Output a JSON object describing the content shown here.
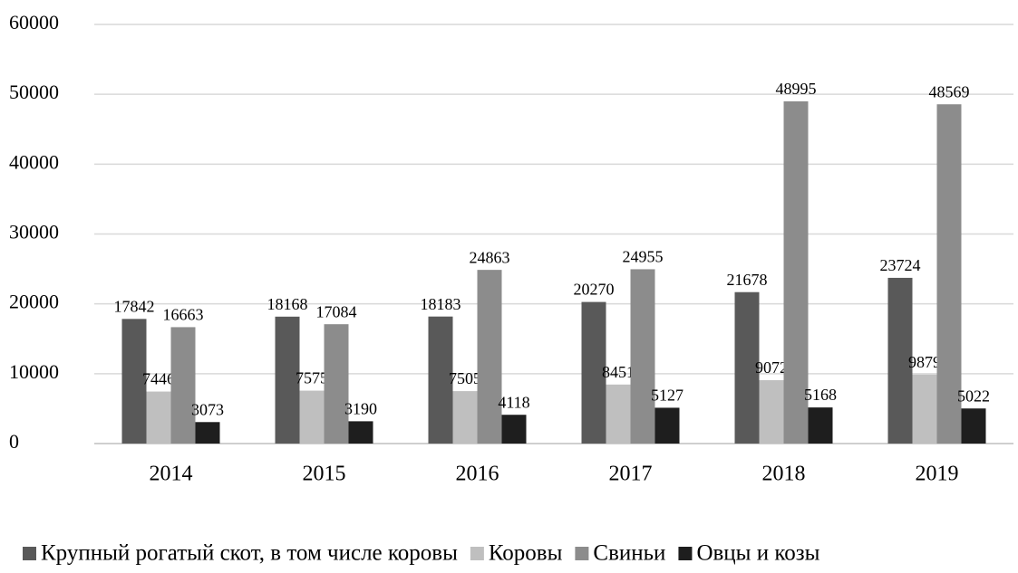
{
  "chart_data": {
    "type": "bar",
    "categories": [
      "2014",
      "2015",
      "2016",
      "2017",
      "2018",
      "2019"
    ],
    "series": [
      {
        "name": "Крупный рогатый скот, в том числе коровы",
        "color": "#595959",
        "values": [
          17842,
          18168,
          18183,
          20270,
          21678,
          23724
        ]
      },
      {
        "name": "Коровы",
        "color": "#bfbfbf",
        "values": [
          7446,
          7575,
          7505,
          8451,
          9072,
          9879
        ]
      },
      {
        "name": "Свиньи",
        "color": "#8c8c8c",
        "values": [
          16663,
          17084,
          24863,
          24955,
          48995,
          48569
        ]
      },
      {
        "name": "Овцы и козы",
        "color": "#1e1e1e",
        "values": [
          3073,
          3190,
          4118,
          5127,
          5168,
          5022
        ]
      }
    ],
    "ylim": [
      0,
      60000
    ],
    "yticks": [
      0,
      10000,
      20000,
      30000,
      40000,
      50000,
      60000
    ],
    "grid": true,
    "legend": "bottom"
  }
}
